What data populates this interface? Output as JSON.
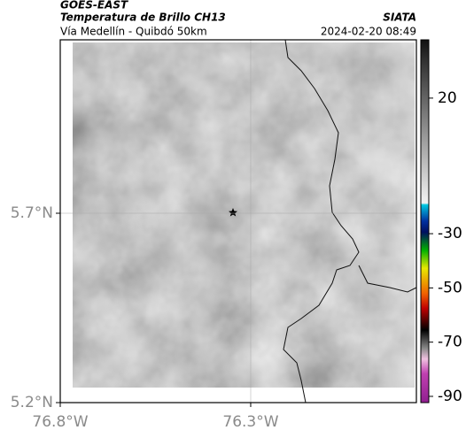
{
  "header": {
    "source": "GOES-EAST",
    "title": "Temperatura de Brillo CH13",
    "subtitle": "Vía Medellín - Quibdó 50km",
    "org": "SIATA",
    "timestamp": "2024-02-20 08:49"
  },
  "map": {
    "lonlim": [
      -76.8,
      -75.865
    ],
    "latlim": [
      5.2,
      6.158
    ],
    "lon_ticks": [
      {
        "value": -76.8,
        "label": "76.8°W"
      },
      {
        "value": -76.3,
        "label": "76.3°W"
      }
    ],
    "lat_ticks": [
      {
        "value": 5.7,
        "label": "5.7°N"
      },
      {
        "value": 5.2,
        "label": "5.2°N"
      }
    ],
    "grid": true
  },
  "colorbar": {
    "lim": [
      -92.3,
      41.5
    ],
    "ticks": [
      20,
      -30,
      -50,
      -70,
      -90
    ]
  }
}
